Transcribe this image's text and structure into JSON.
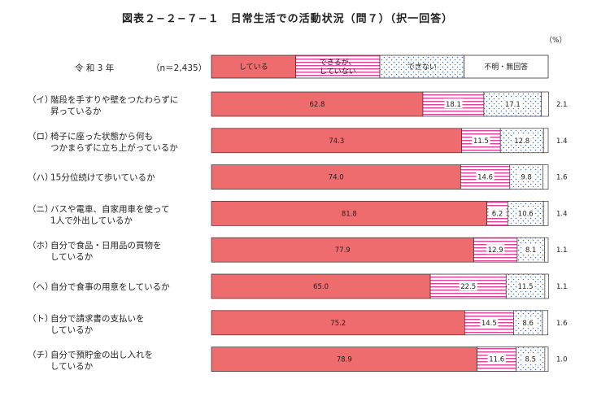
{
  "chart_data": {
    "type": "bar",
    "stacked": true,
    "orientation": "horizontal",
    "title": "図表２−２−７−１　日常生活での活動状況（問７）（択一回答）",
    "unit": "（%）",
    "header": {
      "year": "令 和 3 年",
      "n": "（n＝2,435）"
    },
    "xlim": [
      0,
      100
    ],
    "categories": [
      {
        "key": "（イ）",
        "lines": [
          "階段を手すりや壁をつたわらずに",
          "昇っているか"
        ]
      },
      {
        "key": "（ロ）",
        "lines": [
          "椅子に座った状態から何も",
          "つかまらずに立ち上がっているか"
        ]
      },
      {
        "key": "（ハ）",
        "lines": [
          "15分位続けて歩いているか"
        ]
      },
      {
        "key": "（ニ）",
        "lines": [
          "バスや電車、自家用車を使って",
          "1人で外出しているか"
        ]
      },
      {
        "key": "（ホ）",
        "lines": [
          "自分で食品・日用品の買物を",
          "しているか"
        ]
      },
      {
        "key": "（ヘ）",
        "lines": [
          "自分で食事の用意をしているか"
        ]
      },
      {
        "key": "（ト）",
        "lines": [
          "自分で請求書の支払いを",
          "しているか"
        ]
      },
      {
        "key": "（チ）",
        "lines": [
          "自分で預貯金の出し入れを",
          "しているか"
        ]
      }
    ],
    "series": [
      {
        "name": "している",
        "pattern": "solid",
        "color": "#ee6b6e",
        "values": [
          62.8,
          74.3,
          74.0,
          81.8,
          77.9,
          65.0,
          75.2,
          78.9
        ]
      },
      {
        "name": "できるが、していない",
        "lines": [
          "できるが、",
          "していない"
        ],
        "pattern": "stripes",
        "color": "#e8409a",
        "values": [
          18.1,
          11.5,
          14.6,
          6.2,
          12.9,
          22.5,
          14.5,
          11.6
        ]
      },
      {
        "name": "できない",
        "pattern": "dots",
        "color": "#4a6fb5",
        "values": [
          17.1,
          12.8,
          9.8,
          10.6,
          8.1,
          11.5,
          8.6,
          8.5
        ]
      },
      {
        "name": "不明・無回答",
        "pattern": "white",
        "color": "#ffffff",
        "values": [
          2.1,
          1.4,
          1.6,
          1.4,
          1.1,
          1.1,
          1.6,
          1.0
        ]
      }
    ]
  }
}
